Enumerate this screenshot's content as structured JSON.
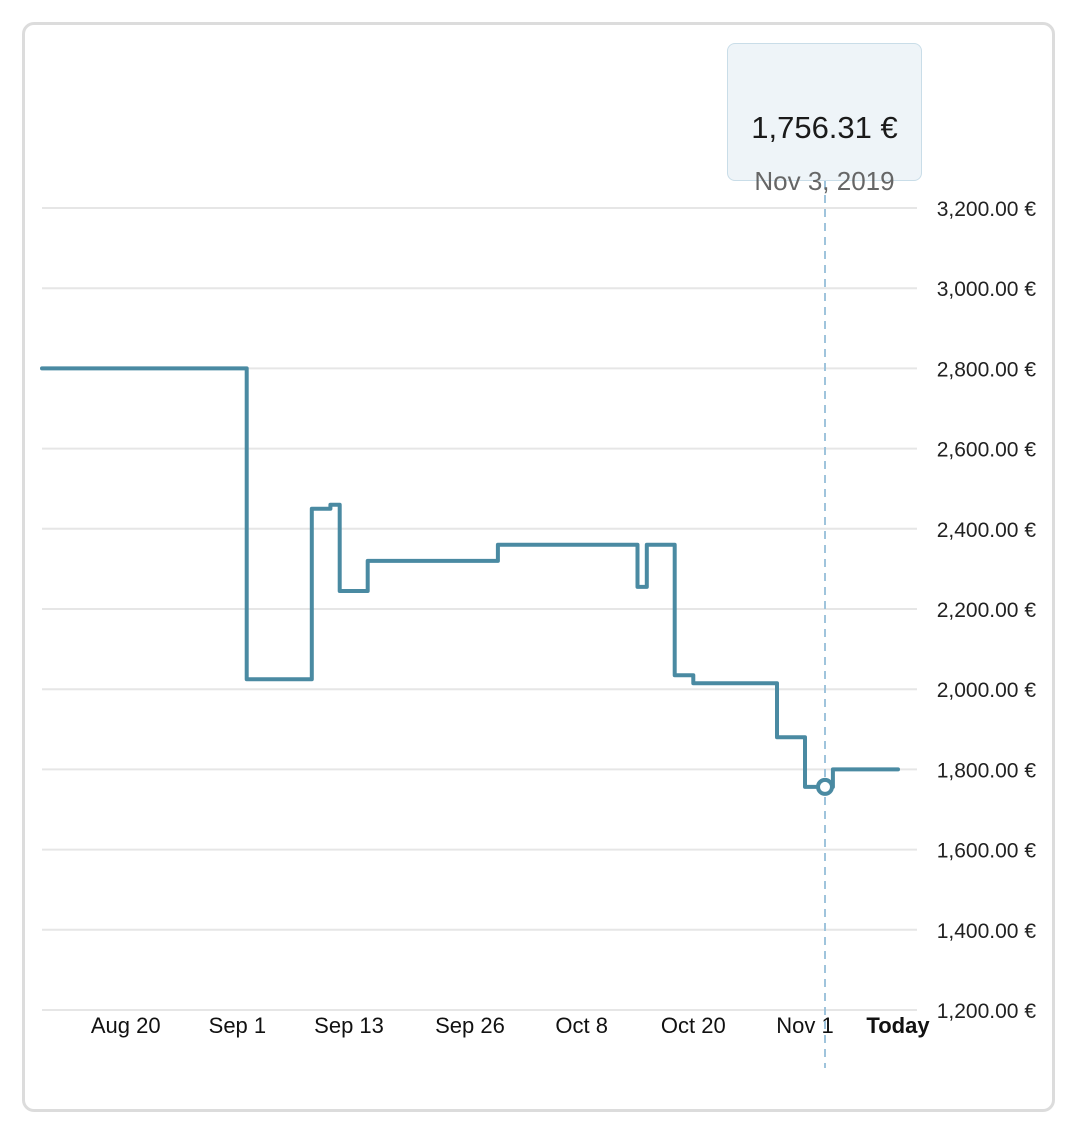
{
  "tooltip": {
    "value": "1,756.31 €",
    "date": "Nov 3, 2019"
  },
  "colors": {
    "line": "#4a8aa2",
    "grid": "#e6e6e6",
    "crosshair": "#9fc4dc",
    "card_border": "#dcdcdc",
    "tooltip_bg": "#eef4f8"
  },
  "chart_data": {
    "type": "line",
    "step": true,
    "ylim": [
      1200,
      3200
    ],
    "y_ticks": [
      3200,
      3000,
      2800,
      2600,
      2400,
      2200,
      2000,
      1800,
      1600,
      1400,
      1200
    ],
    "y_tick_labels": [
      "3,200.00 €",
      "3,000.00 €",
      "2,800.00 €",
      "2,600.00 €",
      "2,400.00 €",
      "2,200.00 €",
      "2,000.00 €",
      "1,800.00 €",
      "1,600.00 €",
      "1,400.00 €",
      "1,200.00 €"
    ],
    "x_range": [
      "2019-08-11",
      "2019-11-11"
    ],
    "x_ticks": [
      {
        "date": "2019-08-20",
        "label": "Aug 20",
        "bold": false
      },
      {
        "date": "2019-09-01",
        "label": "Sep 1",
        "bold": false
      },
      {
        "date": "2019-09-13",
        "label": "Sep 13",
        "bold": false
      },
      {
        "date": "2019-09-26",
        "label": "Sep 26",
        "bold": false
      },
      {
        "date": "2019-10-08",
        "label": "Oct 8",
        "bold": false
      },
      {
        "date": "2019-10-20",
        "label": "Oct 20",
        "bold": false
      },
      {
        "date": "2019-11-01",
        "label": "Nov 1",
        "bold": false
      },
      {
        "date": "2019-11-11",
        "label": "Today",
        "bold": true
      }
    ],
    "grid": true,
    "highlight": {
      "date": "2019-11-03",
      "value": 1756.31
    },
    "series": [
      {
        "points": [
          [
            "2019-08-11",
            2800
          ],
          [
            "2019-09-02",
            2800
          ],
          [
            "2019-09-02",
            2025
          ],
          [
            "2019-09-09",
            2025
          ],
          [
            "2019-09-09",
            2450
          ],
          [
            "2019-09-11",
            2450
          ],
          [
            "2019-09-11",
            2460
          ],
          [
            "2019-09-12",
            2460
          ],
          [
            "2019-09-12",
            2245
          ],
          [
            "2019-09-15",
            2245
          ],
          [
            "2019-09-15",
            2320
          ],
          [
            "2019-09-29",
            2320
          ],
          [
            "2019-09-29",
            2360
          ],
          [
            "2019-10-14",
            2360
          ],
          [
            "2019-10-14",
            2255
          ],
          [
            "2019-10-15",
            2255
          ],
          [
            "2019-10-15",
            2360
          ],
          [
            "2019-10-18",
            2360
          ],
          [
            "2019-10-18",
            2035
          ],
          [
            "2019-10-20",
            2035
          ],
          [
            "2019-10-20",
            2015
          ],
          [
            "2019-10-29",
            2015
          ],
          [
            "2019-10-29",
            1880
          ],
          [
            "2019-11-01",
            1880
          ],
          [
            "2019-11-01",
            1756.31
          ],
          [
            "2019-11-04",
            1756.31
          ],
          [
            "2019-11-04",
            1800
          ],
          [
            "2019-11-11",
            1800
          ]
        ]
      }
    ]
  }
}
